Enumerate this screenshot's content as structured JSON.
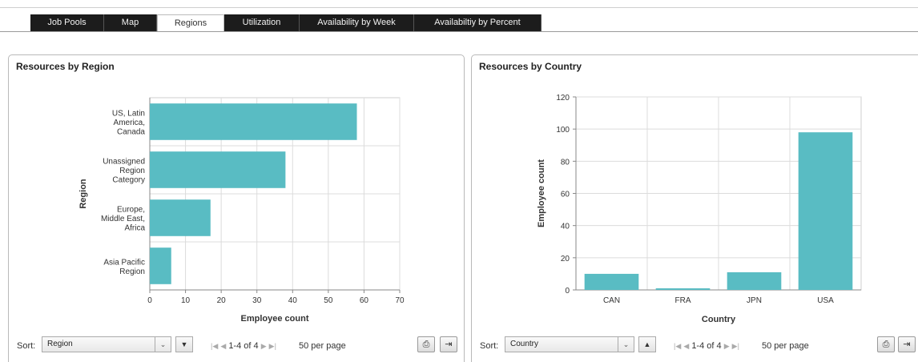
{
  "tabs": [
    {
      "label": "Job Pools",
      "active": false,
      "width": 92
    },
    {
      "label": "Map",
      "active": false,
      "width": 66
    },
    {
      "label": "Regions",
      "active": true,
      "width": 84
    },
    {
      "label": "Utilization",
      "active": false,
      "width": 94
    },
    {
      "label": "Availability by Week",
      "active": false,
      "width": 143
    },
    {
      "label": "Availabiltiy by Percent",
      "active": false,
      "width": 159
    }
  ],
  "left_panel": {
    "title": "Resources by Region",
    "chart_data": {
      "type": "bar",
      "orientation": "horizontal",
      "categories": [
        [
          "US, Latin",
          "America,",
          "Canada"
        ],
        [
          "Unassigned",
          "Region",
          "Category"
        ],
        [
          "Europe,",
          "Middle East,",
          "Africa"
        ],
        [
          "Asia Pacific",
          "Region"
        ]
      ],
      "values": [
        58,
        38,
        17,
        6
      ],
      "xlabel": "Employee count",
      "ylabel": "Region",
      "xlim": [
        0,
        70
      ],
      "xticks": [
        0,
        10,
        20,
        30,
        40,
        50,
        60,
        70
      ],
      "grid": true,
      "bar_color": "#59bcc3"
    },
    "footer": {
      "sort_label": "Sort:",
      "sort_value": "Region",
      "select_arrow": "⌄",
      "sort_direction": "▼",
      "pager_text": "1-4 of 4",
      "per_page": "50 per page"
    }
  },
  "right_panel": {
    "title": "Resources by Country",
    "chart_data": {
      "type": "bar",
      "orientation": "vertical",
      "categories": [
        "CAN",
        "FRA",
        "JPN",
        "USA"
      ],
      "values": [
        10,
        1,
        11,
        98
      ],
      "xlabel": "Country",
      "ylabel": "Employee count",
      "ylim": [
        0,
        120
      ],
      "yticks": [
        0,
        20,
        40,
        60,
        80,
        100,
        120
      ],
      "grid": true,
      "bar_color": "#59bcc3"
    },
    "footer": {
      "sort_label": "Sort:",
      "sort_value": "Country",
      "select_arrow": "⌄",
      "sort_direction": "▲",
      "pager_text": "1-4 of 4",
      "per_page": "50 per page"
    }
  },
  "icons": {
    "print": "print-icon",
    "export": "export-icon"
  }
}
